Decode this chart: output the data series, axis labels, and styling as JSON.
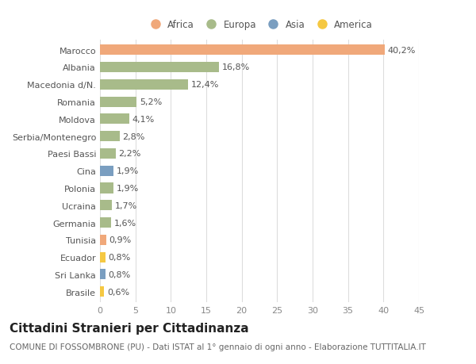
{
  "countries": [
    "Marocco",
    "Albania",
    "Macedonia d/N.",
    "Romania",
    "Moldova",
    "Serbia/Montenegro",
    "Paesi Bassi",
    "Cina",
    "Polonia",
    "Ucraina",
    "Germania",
    "Tunisia",
    "Ecuador",
    "Sri Lanka",
    "Brasile"
  ],
  "values": [
    40.2,
    16.8,
    12.4,
    5.2,
    4.1,
    2.8,
    2.2,
    1.9,
    1.9,
    1.7,
    1.6,
    0.9,
    0.8,
    0.8,
    0.6
  ],
  "labels": [
    "40,2%",
    "16,8%",
    "12,4%",
    "5,2%",
    "4,1%",
    "2,8%",
    "2,2%",
    "1,9%",
    "1,9%",
    "1,7%",
    "1,6%",
    "0,9%",
    "0,8%",
    "0,8%",
    "0,6%"
  ],
  "colors": [
    "#F0A87A",
    "#A8BB8A",
    "#A8BB8A",
    "#A8BB8A",
    "#A8BB8A",
    "#A8BB8A",
    "#A8BB8A",
    "#7A9EC0",
    "#A8BB8A",
    "#A8BB8A",
    "#A8BB8A",
    "#F0A87A",
    "#F5C842",
    "#7A9EC0",
    "#F5C842"
  ],
  "legend_labels": [
    "Africa",
    "Europa",
    "Asia",
    "America"
  ],
  "legend_colors": [
    "#F0A87A",
    "#A8BB8A",
    "#7A9EC0",
    "#F5C842"
  ],
  "xlim": [
    0,
    45
  ],
  "xticks": [
    0,
    5,
    10,
    15,
    20,
    25,
    30,
    35,
    40,
    45
  ],
  "title": "Cittadini Stranieri per Cittadinanza",
  "subtitle": "COMUNE DI FOSSOMBRONE (PU) - Dati ISTAT al 1° gennaio di ogni anno - Elaborazione TUTTITALIA.IT",
  "bg_color": "#FFFFFF",
  "grid_color": "#DDDDDD",
  "bar_height": 0.6,
  "label_fontsize": 8,
  "ytick_fontsize": 8,
  "xtick_fontsize": 8,
  "legend_fontsize": 8.5,
  "title_fontsize": 11,
  "subtitle_fontsize": 7.5
}
